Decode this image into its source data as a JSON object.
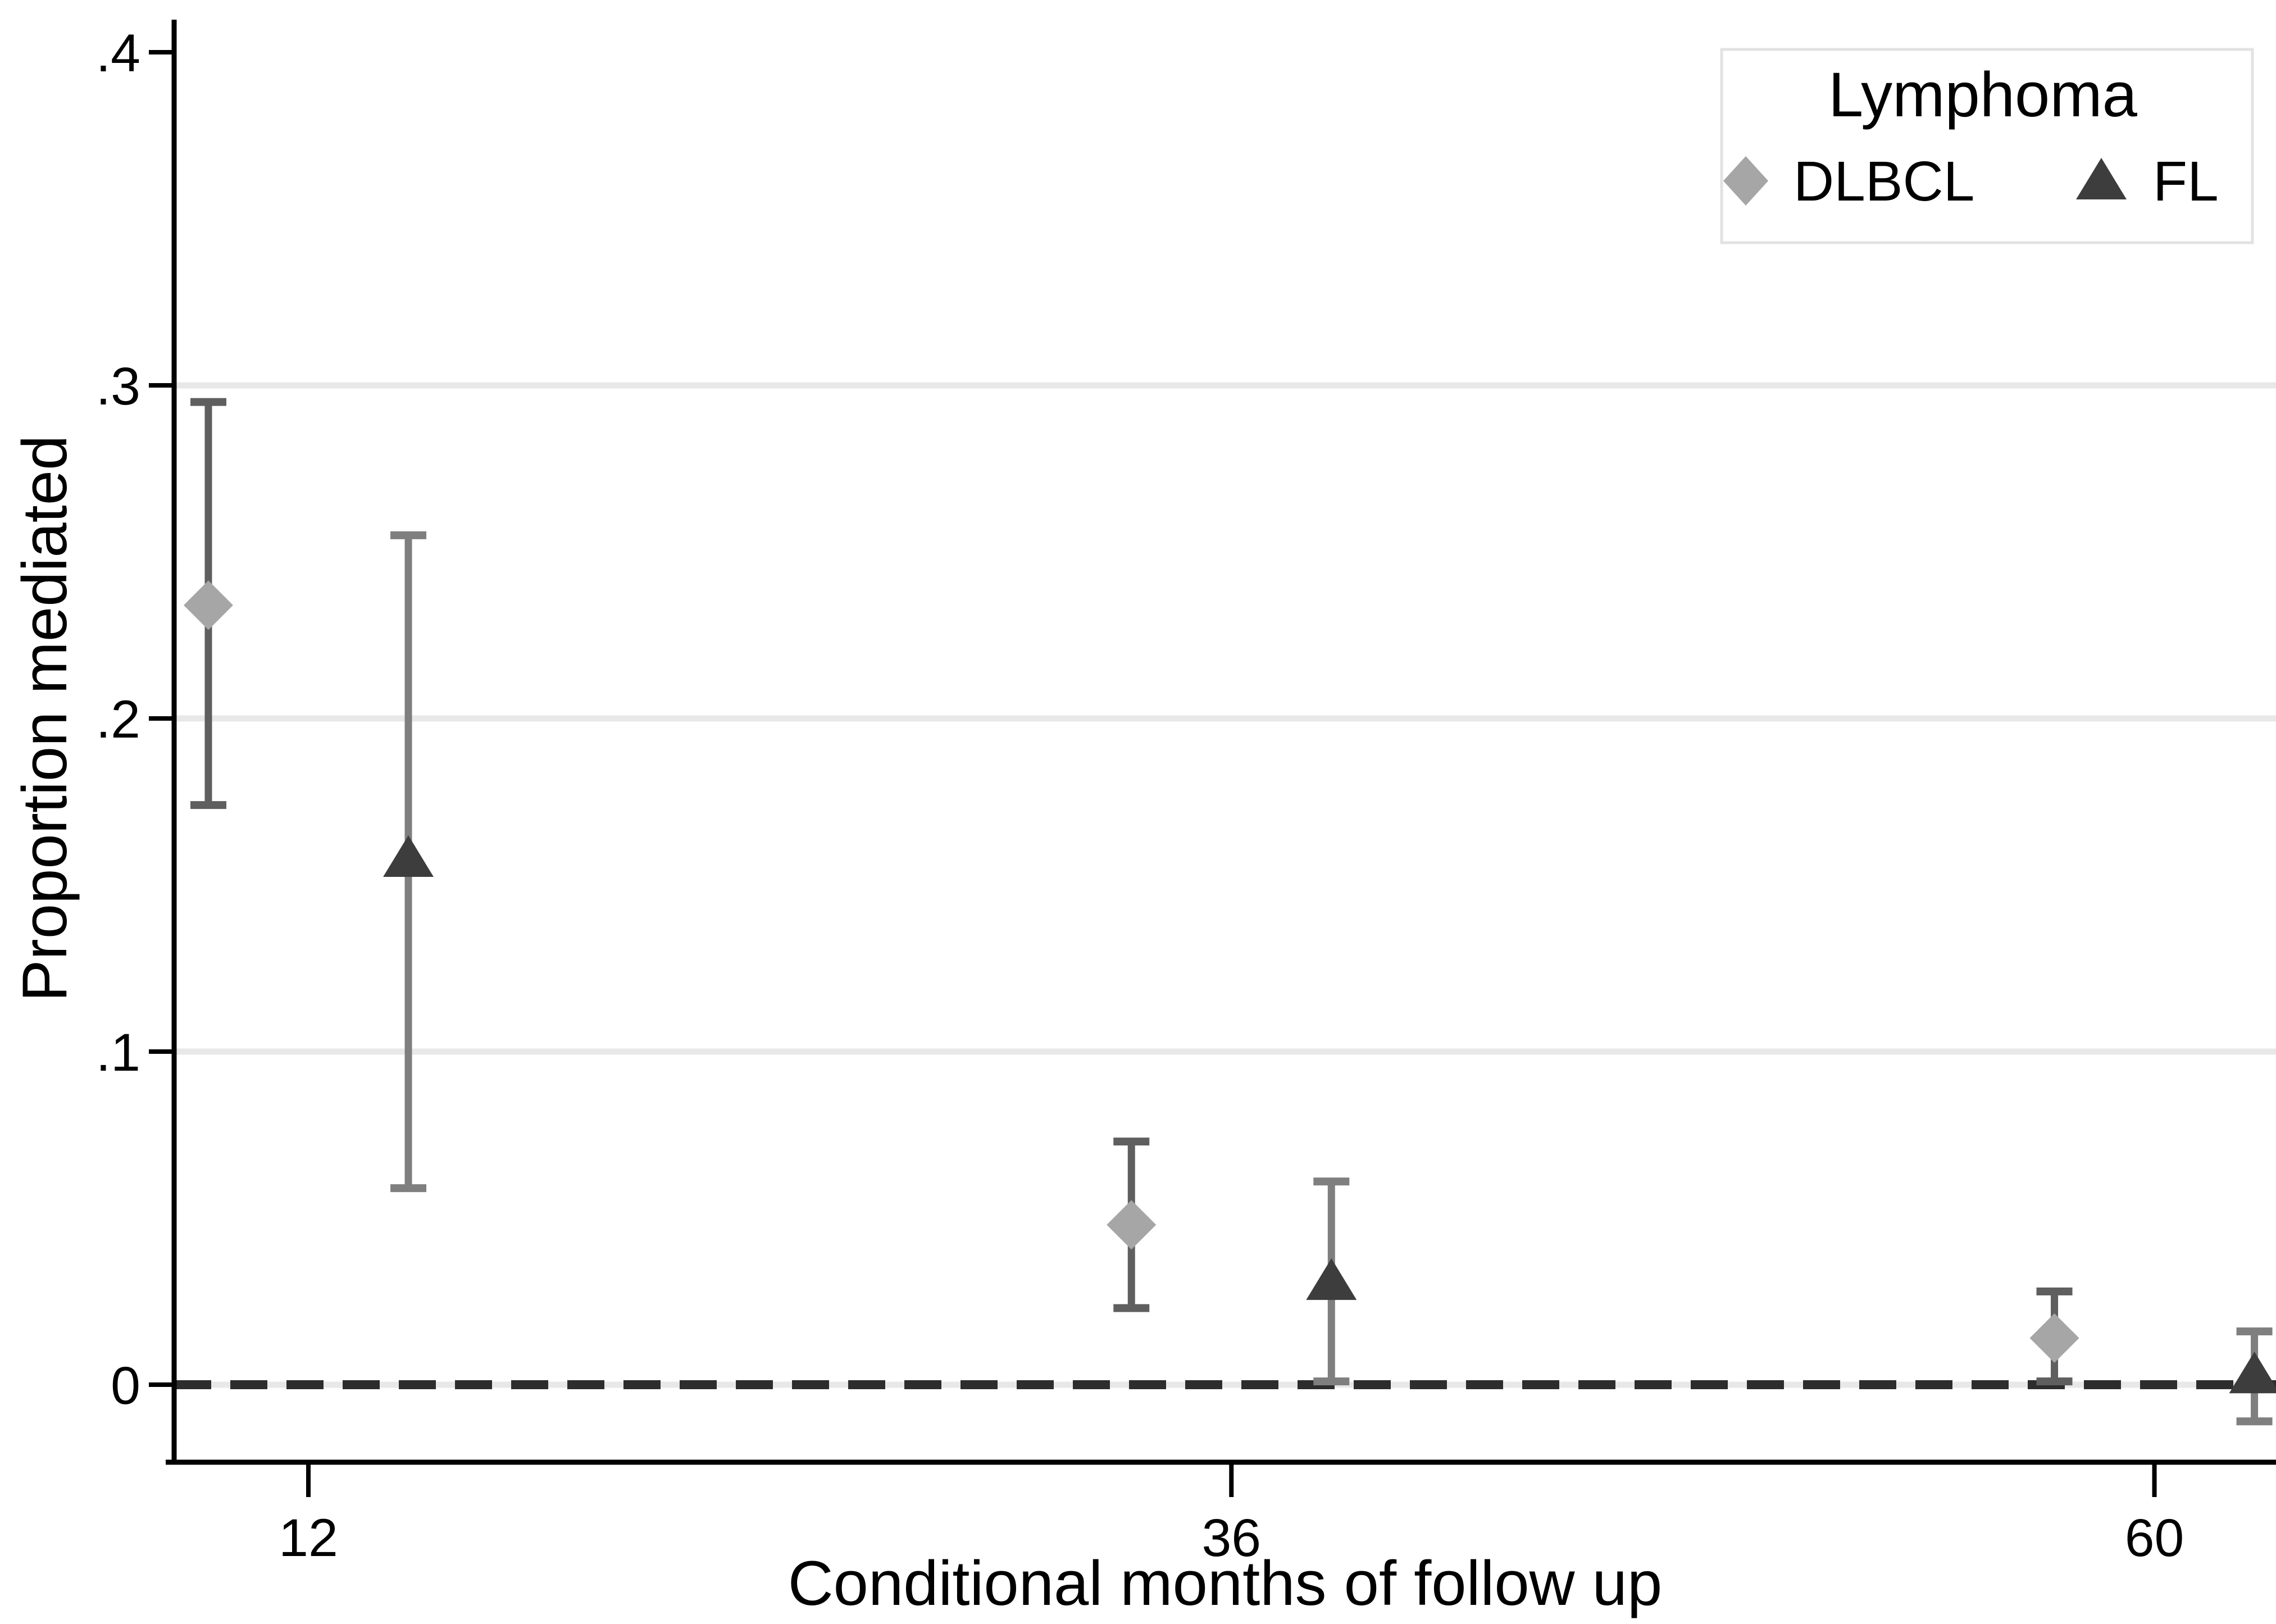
{
  "chart_data": {
    "type": "scatter",
    "subtype": "point-estimates-with-95ci-error-bars",
    "xlabel": "Conditional months of follow up",
    "ylabel": "Proportion mediated",
    "xlim": [
      8.5,
      63.2
    ],
    "ylim": [
      -0.0233,
      0.4098
    ],
    "x_ticks": [
      {
        "value": 12,
        "label": "12"
      },
      {
        "value": 36,
        "label": "36"
      },
      {
        "value": 60,
        "label": "60"
      }
    ],
    "y_ticks": [
      {
        "value": 0,
        "label": "0"
      },
      {
        "value": 0.1,
        "label": ".1"
      },
      {
        "value": 0.2,
        "label": ".2"
      },
      {
        "value": 0.3,
        "label": ".3"
      },
      {
        "value": 0.4,
        "label": ".4"
      }
    ],
    "gridline_values": [
      0,
      0.1,
      0.2,
      0.3
    ],
    "grid_on": true,
    "reference_line": {
      "y": 0,
      "style": "dashed",
      "color": "#2d2d2d"
    },
    "series": [
      {
        "name": "DLBCL",
        "marker": "diamond",
        "marker_color": "#a6a6a6",
        "ci_color": "#5f5f5f",
        "x_offset_months": -2.6,
        "points": [
          {
            "x": 12,
            "y": 0.234,
            "lo": 0.174,
            "hi": 0.295
          },
          {
            "x": 36,
            "y": 0.048,
            "lo": 0.023,
            "hi": 0.073
          },
          {
            "x": 60,
            "y": 0.014,
            "lo": 0.001,
            "hi": 0.028
          }
        ]
      },
      {
        "name": "FL",
        "marker": "triangle",
        "marker_color": "#3d3d3d",
        "ci_color": "#7f7f7f",
        "x_offset_months": 2.6,
        "points": [
          {
            "x": 12,
            "y": 0.158,
            "lo": 0.059,
            "hi": 0.255
          },
          {
            "x": 36,
            "y": 0.031,
            "lo": 0.001,
            "hi": 0.061
          },
          {
            "x": 60,
            "y": 0.003,
            "lo": -0.011,
            "hi": 0.016
          }
        ]
      }
    ],
    "legend": {
      "title": "Lymphoma",
      "position": "top-right",
      "entries": [
        {
          "label": "DLBCL",
          "marker": "diamond"
        },
        {
          "label": "FL",
          "marker": "triangle"
        }
      ]
    },
    "colors": {
      "axis": "#000000",
      "gridline": "#e8e8e8",
      "zero_dash": "#2d2d2d",
      "legend_border": "#e2e2e2",
      "background": "#ffffff"
    }
  }
}
